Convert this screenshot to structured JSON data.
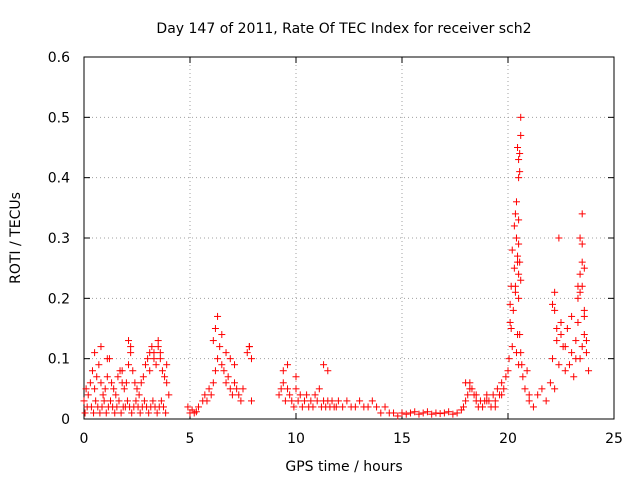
{
  "chart_data": {
    "type": "scatter",
    "title": "Day 147 of 2011, Rate Of TEC Index for receiver sch2",
    "xlabel": "GPS time / hours",
    "ylabel": "ROTI / TECUs",
    "xlim": [
      0,
      25
    ],
    "ylim": [
      0,
      0.6
    ],
    "x_ticks": [
      "0",
      "5",
      "10",
      "15",
      "20",
      "25"
    ],
    "y_ticks": [
      "0",
      "0.1",
      "0.2",
      "0.3",
      "0.4",
      "0.5",
      "0.6"
    ],
    "grid": true,
    "marker": "+",
    "series_color": "#ff0000",
    "series": [
      {
        "x": [
          0.0,
          0.1,
          0.2,
          0.3,
          0.4,
          0.5,
          0.6,
          0.7,
          0.8,
          0.9,
          1.0,
          1.1,
          1.2,
          1.3,
          1.4,
          1.5,
          1.6,
          1.7,
          1.8,
          1.9,
          2.0,
          2.1,
          2.2,
          2.3,
          2.4,
          2.5,
          2.6,
          2.7,
          2.8,
          2.9,
          3.0,
          3.1,
          3.2,
          3.3,
          3.4,
          3.5,
          3.6,
          3.7,
          3.8,
          3.9,
          4.0,
          0.05,
          0.15,
          0.35,
          0.45,
          0.55,
          0.65,
          0.75,
          0.85,
          0.95,
          1.05,
          1.15,
          1.25,
          1.35,
          1.45,
          1.55,
          1.65,
          1.75,
          1.85,
          1.95,
          2.05,
          2.15,
          2.25,
          2.35,
          2.45,
          2.55,
          2.65,
          2.75,
          2.85,
          2.95,
          3.05,
          3.15,
          3.25,
          3.35,
          3.45,
          3.55,
          3.65,
          3.75,
          3.85,
          0.5,
          0.8,
          1.1,
          1.8,
          2.1,
          2.2,
          3.1,
          3.3,
          3.5,
          3.6,
          3.9,
          4.9,
          5.0,
          5.1,
          5.2,
          5.3,
          5.4,
          5.6,
          5.7,
          5.8,
          5.9,
          6.0,
          6.1,
          6.2,
          6.3,
          6.4,
          6.5,
          6.6,
          6.7,
          6.8,
          6.9,
          7.0,
          7.1,
          7.2,
          7.3,
          7.4,
          7.5,
          7.7,
          7.8,
          7.9,
          6.1,
          6.2,
          6.3,
          6.5,
          6.7,
          6.9,
          7.1,
          7.8,
          7.9,
          9.2,
          9.3,
          9.4,
          9.5,
          9.6,
          9.7,
          9.8,
          9.9,
          10.0,
          10.1,
          10.2,
          10.3,
          10.4,
          10.5,
          10.6,
          10.7,
          10.8,
          10.9,
          11.0,
          11.1,
          11.2,
          11.3,
          11.4,
          11.5,
          11.6,
          11.7,
          11.8,
          11.9,
          12.0,
          9.4,
          9.6,
          10.0,
          11.3,
          11.5,
          12.2,
          12.4,
          12.6,
          12.8,
          13.0,
          13.2,
          13.4,
          13.6,
          13.8,
          14.0,
          14.2,
          14.4,
          14.6,
          14.8,
          15.0,
          15.2,
          15.4,
          15.6,
          15.8,
          16.0,
          16.2,
          16.4,
          16.6,
          16.8,
          17.0,
          17.2,
          17.4,
          17.6,
          17.8,
          17.9,
          18.0,
          18.1,
          18.2,
          18.3,
          18.4,
          18.5,
          18.6,
          18.7,
          18.8,
          18.9,
          19.0,
          19.1,
          19.2,
          19.3,
          19.4,
          19.5,
          19.6,
          19.7,
          19.8,
          19.9,
          18.0,
          18.2,
          18.5,
          19.0,
          19.4,
          19.7,
          20.0,
          20.05,
          20.1,
          20.15,
          20.2,
          20.25,
          20.3,
          20.35,
          20.4,
          20.45,
          20.5,
          20.55,
          20.6,
          20.65,
          20.7,
          20.8,
          20.9,
          21.0,
          20.1,
          20.15,
          20.2,
          20.3,
          20.35,
          20.4,
          20.45,
          20.5,
          20.5,
          20.5,
          20.55,
          20.55,
          20.6,
          20.6,
          20.45,
          20.4,
          20.35,
          20.5,
          20.5,
          20.55,
          20.6,
          20.5,
          20.45,
          20.4,
          21.0,
          21.2,
          21.4,
          21.6,
          21.8,
          22.0,
          22.1,
          22.2,
          22.3,
          22.4,
          22.5,
          22.6,
          22.7,
          22.8,
          22.9,
          23.0,
          23.1,
          23.2,
          23.3,
          23.4,
          23.5,
          23.6,
          23.7,
          23.8,
          22.1,
          22.2,
          22.3,
          22.5,
          22.7,
          23.0,
          23.2,
          23.3,
          23.4,
          23.5,
          23.6,
          23.4,
          23.5,
          23.3,
          23.6,
          23.7,
          23.5,
          23.4,
          23.6,
          23.5,
          22.4,
          22.2
        ],
        "y": [
          0.03,
          0.05,
          0.04,
          0.06,
          0.08,
          0.05,
          0.07,
          0.09,
          0.06,
          0.04,
          0.05,
          0.07,
          0.1,
          0.06,
          0.05,
          0.04,
          0.07,
          0.08,
          0.06,
          0.05,
          0.06,
          0.09,
          0.11,
          0.08,
          0.06,
          0.05,
          0.04,
          0.06,
          0.07,
          0.09,
          0.1,
          0.08,
          0.12,
          0.11,
          0.09,
          0.13,
          0.1,
          0.08,
          0.07,
          0.06,
          0.04,
          0.01,
          0.02,
          0.02,
          0.01,
          0.03,
          0.02,
          0.01,
          0.02,
          0.03,
          0.01,
          0.02,
          0.03,
          0.02,
          0.01,
          0.02,
          0.03,
          0.01,
          0.02,
          0.02,
          0.03,
          0.02,
          0.01,
          0.02,
          0.03,
          0.02,
          0.01,
          0.02,
          0.03,
          0.02,
          0.01,
          0.02,
          0.03,
          0.02,
          0.01,
          0.02,
          0.03,
          0.02,
          0.01,
          0.11,
          0.12,
          0.1,
          0.08,
          0.13,
          0.12,
          0.11,
          0.1,
          0.12,
          0.11,
          0.09,
          0.02,
          0.01,
          0.015,
          0.01,
          0.012,
          0.02,
          0.03,
          0.04,
          0.03,
          0.05,
          0.04,
          0.06,
          0.08,
          0.1,
          0.12,
          0.09,
          0.08,
          0.06,
          0.07,
          0.05,
          0.04,
          0.06,
          0.05,
          0.04,
          0.03,
          0.05,
          0.11,
          0.12,
          0.1,
          0.13,
          0.15,
          0.17,
          0.14,
          0.11,
          0.1,
          0.09,
          0.12,
          0.03,
          0.04,
          0.05,
          0.06,
          0.03,
          0.05,
          0.04,
          0.03,
          0.02,
          0.05,
          0.03,
          0.04,
          0.02,
          0.03,
          0.04,
          0.02,
          0.03,
          0.02,
          0.04,
          0.03,
          0.05,
          0.02,
          0.03,
          0.02,
          0.03,
          0.02,
          0.03,
          0.02,
          0.02,
          0.03,
          0.08,
          0.09,
          0.07,
          0.09,
          0.08,
          0.02,
          0.03,
          0.02,
          0.02,
          0.03,
          0.02,
          0.02,
          0.03,
          0.02,
          0.01,
          0.02,
          0.01,
          0.01,
          0.005,
          0.01,
          0.008,
          0.01,
          0.012,
          0.008,
          0.01,
          0.012,
          0.008,
          0.01,
          0.009,
          0.01,
          0.012,
          0.008,
          0.01,
          0.015,
          0.02,
          0.03,
          0.04,
          0.06,
          0.05,
          0.04,
          0.03,
          0.02,
          0.03,
          0.02,
          0.03,
          0.04,
          0.03,
          0.02,
          0.04,
          0.03,
          0.05,
          0.04,
          0.06,
          0.05,
          0.07,
          0.06,
          0.05,
          0.04,
          0.03,
          0.02,
          0.04,
          0.08,
          0.1,
          0.19,
          0.15,
          0.12,
          0.18,
          0.25,
          0.22,
          0.3,
          0.26,
          0.2,
          0.14,
          0.11,
          0.09,
          0.07,
          0.05,
          0.08,
          0.04,
          0.16,
          0.22,
          0.28,
          0.32,
          0.34,
          0.3,
          0.27,
          0.24,
          0.4,
          0.43,
          0.41,
          0.44,
          0.47,
          0.5,
          0.45,
          0.36,
          0.21,
          0.33,
          0.29,
          0.26,
          0.23,
          0.09,
          0.14,
          0.11,
          0.03,
          0.02,
          0.04,
          0.05,
          0.03,
          0.06,
          0.1,
          0.18,
          0.13,
          0.09,
          0.16,
          0.12,
          0.08,
          0.15,
          0.09,
          0.11,
          0.07,
          0.13,
          0.16,
          0.1,
          0.22,
          0.14,
          0.11,
          0.08,
          0.19,
          0.21,
          0.15,
          0.14,
          0.12,
          0.17,
          0.1,
          0.22,
          0.24,
          0.26,
          0.25,
          0.3,
          0.29,
          0.2,
          0.17,
          0.13,
          0.34,
          0.21,
          0.18,
          0.12,
          0.3,
          0.05
        ]
      }
    ]
  }
}
